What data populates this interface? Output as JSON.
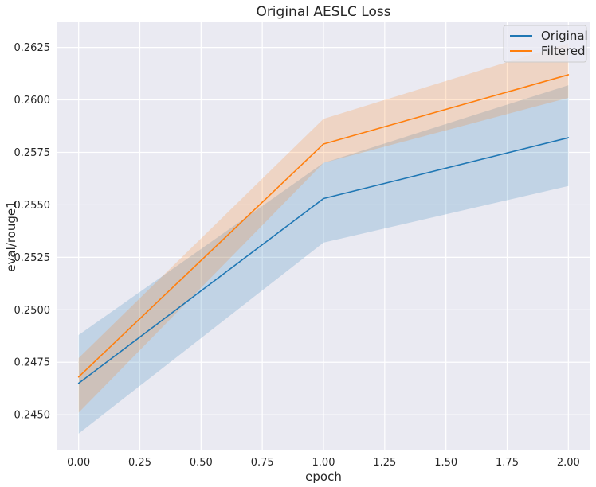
{
  "chart_data": {
    "type": "line",
    "title": "Original AESLC Loss",
    "xlabel": "epoch",
    "ylabel": "eval/rouge1",
    "x": [
      0.0,
      1.0,
      2.0
    ],
    "xlim": [
      -0.09,
      2.09
    ],
    "ylim": [
      0.2433,
      0.2637
    ],
    "xticks": [
      0.0,
      0.25,
      0.5,
      0.75,
      1.0,
      1.25,
      1.5,
      1.75,
      2.0
    ],
    "xtick_labels": [
      "0.00",
      "0.25",
      "0.50",
      "0.75",
      "1.00",
      "1.25",
      "1.50",
      "1.75",
      "2.00"
    ],
    "yticks": [
      0.245,
      0.2475,
      0.25,
      0.2525,
      0.255,
      0.2575,
      0.26,
      0.2625
    ],
    "ytick_labels": [
      "0.2450",
      "0.2475",
      "0.2500",
      "0.2525",
      "0.2550",
      "0.2575",
      "0.2600",
      "0.2625"
    ],
    "grid": true,
    "legend_position": "top-right",
    "series": [
      {
        "name": "Original",
        "color": "#1f77b4",
        "values": [
          0.2465,
          0.2553,
          0.2582
        ],
        "ci_lower": [
          0.2441,
          0.2532,
          0.2559
        ],
        "ci_upper": [
          0.2488,
          0.257,
          0.2607
        ]
      },
      {
        "name": "Filtered",
        "color": "#ff7f0e",
        "values": [
          0.2468,
          0.2579,
          0.2612
        ],
        "ci_lower": [
          0.2451,
          0.257,
          0.2601
        ],
        "ci_upper": [
          0.2477,
          0.2591,
          0.2627
        ]
      }
    ]
  },
  "colors": {
    "background": "#ffffff",
    "plot_background": "#eaeaf2",
    "grid": "#ffffff"
  }
}
